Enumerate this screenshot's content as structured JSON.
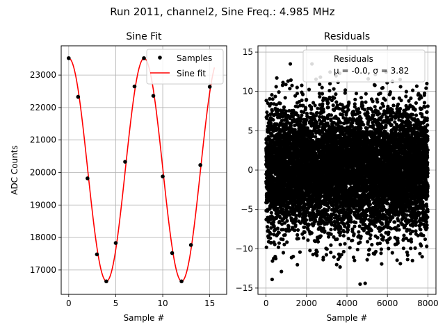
{
  "suptitle": "Run 2011, channel2, Sine Freq.: 4.985 MHz",
  "chart_data": [
    {
      "type": "line",
      "title": "Sine Fit",
      "xlabel": "Sample #",
      "ylabel": "ADC Counts",
      "xlim": [
        -0.8,
        16.8
      ],
      "ylim": [
        16250,
        23900
      ],
      "xticks": [
        0,
        5,
        10,
        15
      ],
      "yticks": [
        17000,
        18000,
        19000,
        20000,
        21000,
        22000,
        23000
      ],
      "grid": true,
      "legend_position": "top-right",
      "series": [
        {
          "name": "Samples",
          "kind": "scatter",
          "color": "#000000",
          "x": [
            0,
            1,
            2,
            3,
            4,
            5,
            6,
            7,
            8,
            9,
            10,
            11,
            12,
            13,
            14,
            15
          ],
          "y": [
            23520,
            22330,
            19820,
            17480,
            16650,
            17830,
            20330,
            22650,
            23520,
            22360,
            19880,
            17520,
            16650,
            17770,
            20230,
            22640
          ]
        },
        {
          "name": "Sine fit",
          "kind": "line",
          "color": "#ff0000",
          "model": {
            "offset": 20085,
            "amplitude": 3430,
            "samples_per_cycle": 8.0,
            "phase_sample": 0.02,
            "x_range": [
              0,
              15.5
            ]
          }
        }
      ]
    },
    {
      "type": "scatter",
      "title": "Residuals",
      "xlabel": "Sample #",
      "xlim": [
        -400,
        8400
      ],
      "ylim": [
        -15.8,
        15.8
      ],
      "xticks": [
        0,
        2000,
        4000,
        6000,
        8000
      ],
      "yticks": [
        -15,
        -10,
        -5,
        0,
        5,
        10,
        15
      ],
      "grid": true,
      "legend_position": "top-right",
      "legend": {
        "label": "Residuals",
        "stats": "μ = -0.0, σ = 3.82"
      },
      "series": [
        {
          "name": "Residuals",
          "color": "#000000",
          "n_points": 8000,
          "mean": 0.0,
          "std": 3.82,
          "outliers": [
            [
              2270,
              13.5
            ],
            [
              1200,
              13.5
            ],
            [
              4650,
              -14.5
            ],
            [
              4900,
              -14.4
            ],
            [
              300,
              -13.9
            ],
            [
              760,
              -12.9
            ],
            [
              3600,
              -10.7
            ],
            [
              5000,
              -11.4
            ],
            [
              7000,
              -10.8
            ],
            [
              7950,
              11.0
            ],
            [
              500,
              10.6
            ],
            [
              6250,
              11.3
            ],
            [
              6650,
              10.6
            ]
          ]
        }
      ]
    }
  ]
}
